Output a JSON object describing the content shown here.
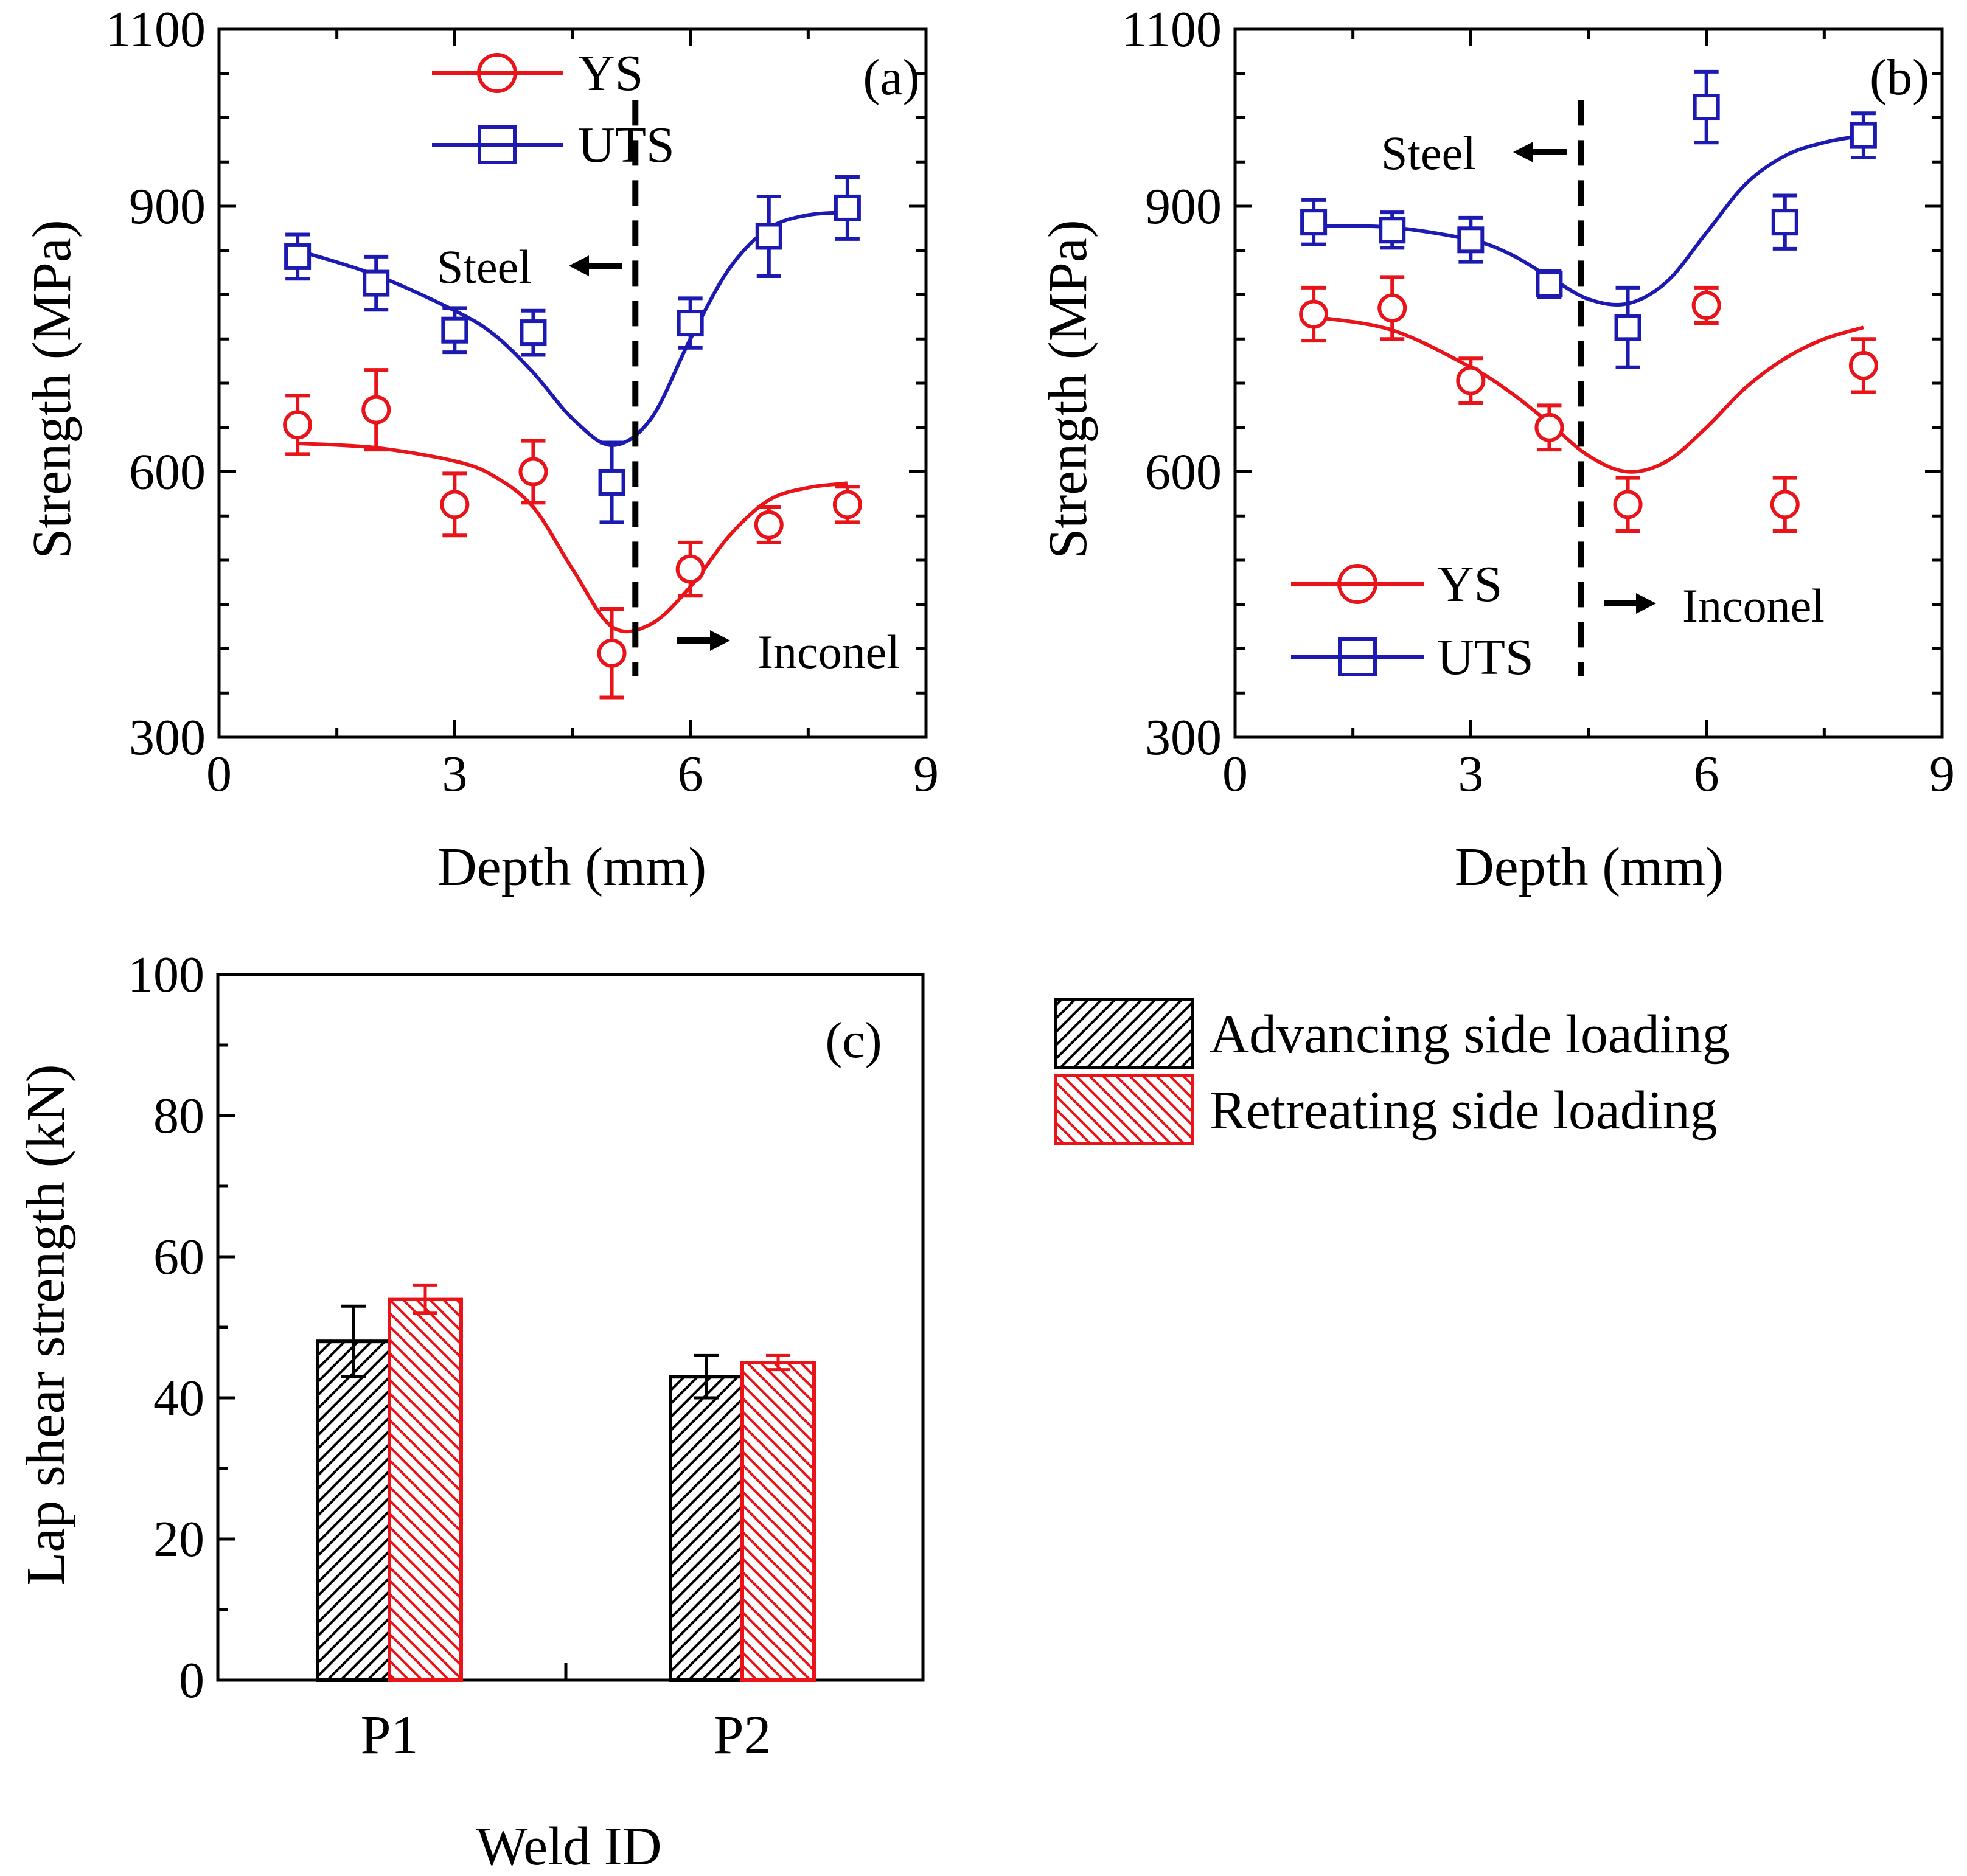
{
  "colors": {
    "ys": "#e8141a",
    "uts": "#1c1ab0",
    "axis": "#000000",
    "advancing": "#000000",
    "retreating": "#e8141a"
  },
  "chart_data": [
    {
      "type": "scatter",
      "panel_label": "(a)",
      "xlabel": "Depth (mm)",
      "ylabel": "Strength (MPa)",
      "xlim": [
        0,
        9
      ],
      "ylim": [
        300,
        1100
      ],
      "xticks": [
        "0",
        "3",
        "6",
        "9"
      ],
      "yticks": [
        "300",
        "600",
        "900",
        "1100"
      ],
      "legend": [
        "YS",
        "UTS"
      ],
      "legend_position": "top-center",
      "annotations": {
        "steel": "Steel",
        "inconel": "Inconel"
      },
      "boundary_depth": 5.3,
      "series": [
        {
          "name": "YS",
          "marker": "circle",
          "x": [
            1,
            2,
            3,
            4,
            5,
            6,
            7,
            8
          ],
          "y": [
            653,
            670,
            563,
            600,
            395,
            490,
            540,
            563
          ],
          "err": [
            33,
            45,
            35,
            35,
            50,
            30,
            20,
            20
          ],
          "fit_x": [
            1,
            2,
            3,
            3.5,
            4,
            4.5,
            5,
            5.5,
            6,
            6.5,
            7,
            7.5,
            8
          ],
          "fit_y": [
            632,
            627,
            612,
            595,
            560,
            490,
            425,
            428,
            470,
            528,
            568,
            582,
            587
          ]
        },
        {
          "name": "UTS",
          "marker": "square",
          "x": [
            1,
            2,
            3,
            4,
            5,
            6,
            7,
            8
          ],
          "y": [
            843,
            813,
            760,
            757,
            588,
            768,
            866,
            898
          ],
          "err": [
            25,
            30,
            25,
            25,
            45,
            28,
            45,
            35
          ],
          "fit_x": [
            1,
            2,
            3,
            3.5,
            4,
            4.5,
            5,
            5.5,
            6,
            6.5,
            7,
            7.5,
            8
          ],
          "fit_y": [
            850,
            822,
            782,
            755,
            712,
            660,
            630,
            660,
            750,
            830,
            875,
            890,
            893
          ]
        }
      ]
    },
    {
      "type": "scatter",
      "panel_label": "(b)",
      "xlabel": "Depth (mm)",
      "ylabel": "Strength (MPa)",
      "xlim": [
        0,
        9
      ],
      "ylim": [
        300,
        1100
      ],
      "xticks": [
        "0",
        "3",
        "6",
        "9"
      ],
      "yticks": [
        "300",
        "600",
        "900",
        "1100"
      ],
      "legend": [
        "YS",
        "UTS"
      ],
      "legend_position": "bottom-left",
      "annotations": {
        "steel": "Steel",
        "inconel": "Inconel"
      },
      "boundary_depth": 4.4,
      "series": [
        {
          "name": "YS",
          "marker": "circle",
          "x": [
            1,
            2,
            3,
            4,
            5,
            6,
            7,
            8
          ],
          "y": [
            778,
            785,
            703,
            650,
            563,
            788,
            563,
            720
          ],
          "err": [
            30,
            35,
            25,
            25,
            30,
            20,
            30,
            30
          ],
          "fit_x": [
            1,
            2,
            3,
            3.5,
            4,
            4.5,
            5,
            5.5,
            6,
            6.5,
            7,
            7.5,
            8
          ],
          "fit_y": [
            775,
            760,
            718,
            690,
            655,
            618,
            600,
            612,
            650,
            695,
            728,
            750,
            763
          ]
        },
        {
          "name": "UTS",
          "marker": "square",
          "x": [
            1,
            2,
            3,
            4,
            5,
            6,
            7,
            8
          ],
          "y": [
            882,
            873,
            862,
            812,
            763,
            1012,
            882,
            980
          ],
          "err": [
            25,
            20,
            25,
            15,
            45,
            40,
            30,
            25
          ],
          "fit_x": [
            1,
            2,
            3,
            3.5,
            4,
            4.5,
            5,
            5.5,
            6,
            6.5,
            7,
            7.5,
            8
          ],
          "fit_y": [
            878,
            876,
            862,
            846,
            820,
            795,
            790,
            815,
            870,
            925,
            957,
            972,
            980
          ]
        }
      ]
    },
    {
      "type": "bar",
      "panel_label": "(c)",
      "xlabel": "Weld ID",
      "ylabel": "Lap shear strength (kN)",
      "ylim": [
        0,
        100
      ],
      "yticks": [
        "0",
        "20",
        "40",
        "60",
        "80",
        "100"
      ],
      "categories": [
        "P1",
        "P2"
      ],
      "legend_position": "outside-right",
      "series": [
        {
          "name": "Advancing side loading",
          "values": [
            48,
            43
          ],
          "err": [
            5,
            3
          ]
        },
        {
          "name": "Retreating side loading",
          "values": [
            54,
            45
          ],
          "err": [
            2,
            1
          ]
        }
      ]
    }
  ]
}
